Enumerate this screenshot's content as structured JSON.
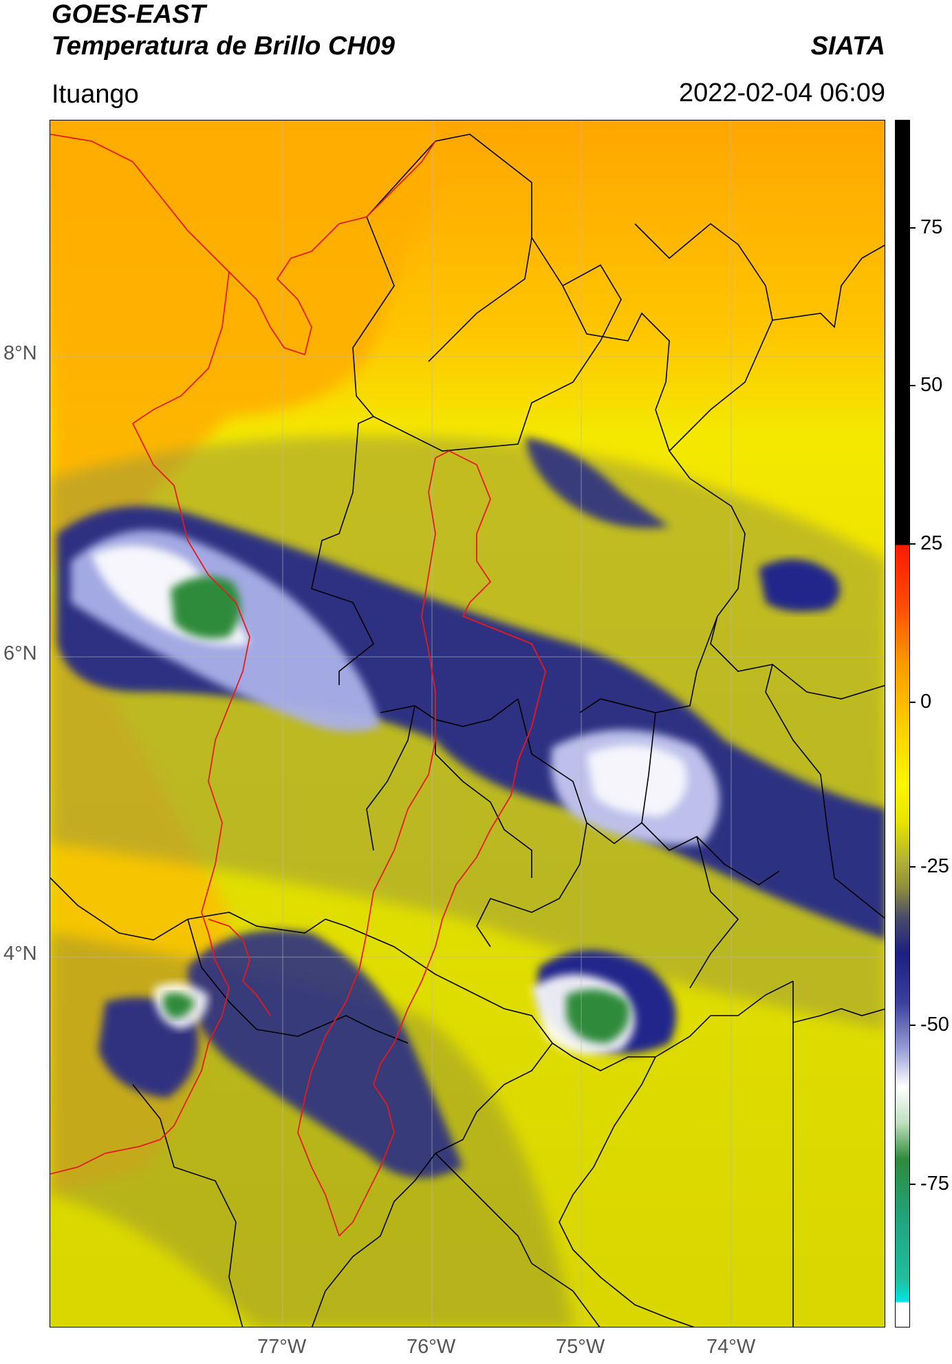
{
  "header": {
    "title_line1": "GOES-EAST",
    "title_line2": "Temperatura de Brillo CH09",
    "brand": "SIATA",
    "location": "Ituango",
    "datetime": "2022-02-04 06:09"
  },
  "map": {
    "lat_labels": [
      "8°N",
      "6°N",
      "4°N"
    ],
    "lon_labels": [
      "77°W",
      "76°W",
      "75°W",
      "74°W"
    ],
    "border_colors": {
      "department": "#000000",
      "highlight": "#e8191b"
    }
  },
  "colorbar": {
    "tick_labels": [
      "75",
      "50",
      "25",
      "0",
      "-25",
      "-50",
      "-75"
    ],
    "colors": {
      "warm_top": "#000000",
      "red": "#ff1a00",
      "orange": "#ff9a00",
      "yellow": "#fff500",
      "olive": "#8f8f3a",
      "navy": "#1c1f82",
      "lavender": "#9aa0d8",
      "white": "#ffffff",
      "green": "#2e8b3a",
      "teal": "#1fbf9f",
      "cyan": "#00e6e6"
    }
  }
}
